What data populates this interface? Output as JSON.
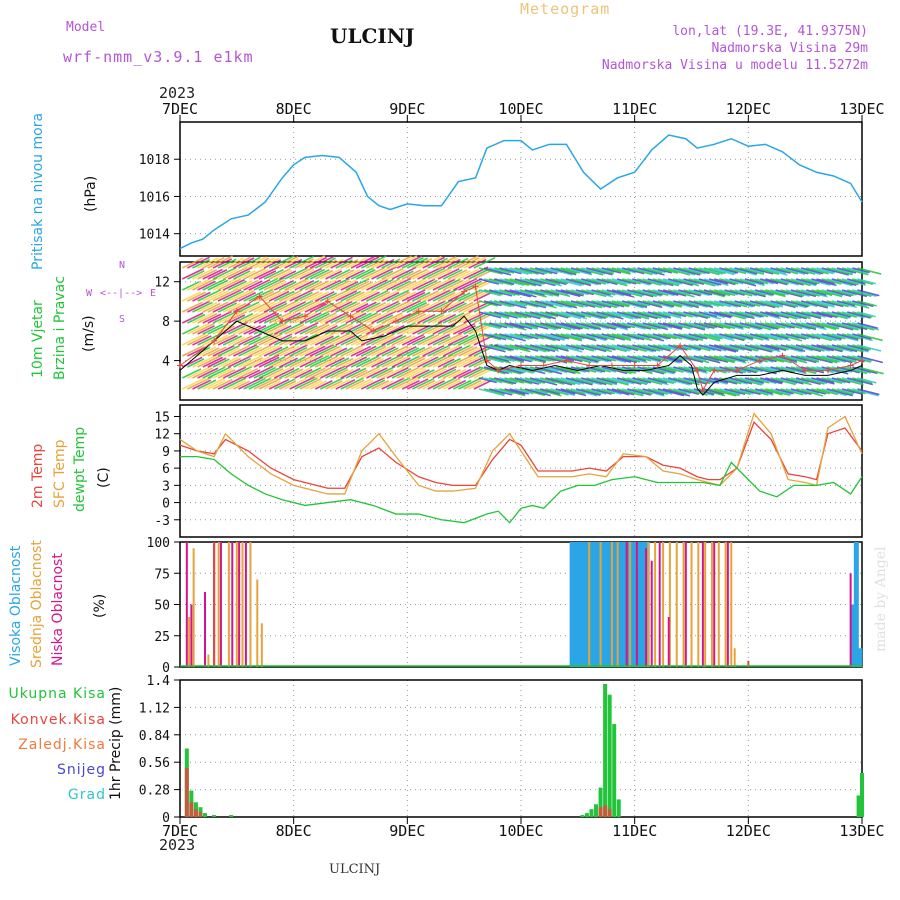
{
  "header": {
    "model_label": "Model",
    "model_name": "wrf-nmm_v3.9.1 e1km",
    "station": "ULCINJ",
    "product": "Meteogram",
    "lonlat": "lon,lat (19.3E, 41.9375N)",
    "elevation": "Nadmorska Visina 29m",
    "model_elevation": "Nadmorska Visina u modelu 11.5272m"
  },
  "footer": {
    "station": "ULCINJ",
    "credit": "made by Angel"
  },
  "x_axis": {
    "year": "2023",
    "ticks": [
      "7DEC",
      "8DEC",
      "9DEC",
      "10DEC",
      "11DEC",
      "12DEC",
      "13DEC"
    ]
  },
  "colors": {
    "pressure": "#2aa6e6",
    "wind_green": "#22c43a",
    "temp2m": "#e8453c",
    "sfc": "#e6a33a",
    "dewpt": "#22c43a",
    "high": "#2aa6e6",
    "mid": "#e6a33a",
    "low": "#d4158a",
    "conv": "#e8453c",
    "snow": "#4a47d0",
    "grad": "#2ec7c7",
    "frz": "#f07a3a",
    "total": "#22c43a",
    "purple": "#b455d6"
  },
  "panels": {
    "pressure": {
      "label1": "Pritisak na nivou mora",
      "unit": "(hPa)"
    },
    "wind": {
      "label1": "10m Vjetar",
      "label2": "Brzina i Pravac",
      "unit": "(m/s)",
      "rose_n": "N",
      "rose_s": "S",
      "rose_e": "E",
      "rose_w": "W",
      "rose_arrow": "<--|-->"
    },
    "temp": {
      "label1": "2m Temp",
      "label2": "SFC Temp",
      "label3": "dewpt Temp",
      "unit": "(C)"
    },
    "cloud": {
      "label1": "Visoka Oblacnost",
      "label2": "Srednja Oblacnost",
      "label3": "Niska Oblacnost",
      "unit": "(%)"
    },
    "precip": {
      "label_unit": "1hr Precip (mm)",
      "legend": [
        "Ukupna Kisa",
        "Konvek.Kisa",
        "Zaledj.Kisa",
        "Snijeg",
        "Grad"
      ]
    }
  },
  "chart_data": [
    {
      "type": "line",
      "title": "",
      "ylabel": "(hPa)",
      "ylim": [
        1012.8,
        1020.0
      ],
      "yticks": [
        "1014",
        "1016",
        "1018"
      ],
      "series": [
        {
          "name": "Pritisak na nivou mora",
          "x": [
            0,
            0.1,
            0.2,
            0.3,
            0.45,
            0.6,
            0.75,
            0.9,
            1.0,
            1.1,
            1.25,
            1.4,
            1.55,
            1.65,
            1.75,
            1.85,
            2.0,
            2.15,
            2.3,
            2.45,
            2.6,
            2.7,
            2.85,
            3.0,
            3.1,
            3.25,
            3.4,
            3.55,
            3.7,
            3.85,
            4.0,
            4.15,
            4.3,
            4.45,
            4.55,
            4.7,
            4.85,
            5.0,
            5.15,
            5.3,
            5.45,
            5.6,
            5.75,
            5.9,
            6.0
          ],
          "values": [
            1013.2,
            1013.5,
            1013.7,
            1014.2,
            1014.8,
            1015.0,
            1015.7,
            1017.0,
            1017.7,
            1018.1,
            1018.2,
            1018.1,
            1017.3,
            1016.0,
            1015.5,
            1015.3,
            1015.6,
            1015.5,
            1015.5,
            1016.8,
            1017.0,
            1018.6,
            1019.0,
            1019.0,
            1018.5,
            1018.8,
            1018.8,
            1017.3,
            1016.4,
            1017.0,
            1017.3,
            1018.5,
            1019.3,
            1019.1,
            1018.6,
            1018.8,
            1019.1,
            1018.7,
            1018.8,
            1018.4,
            1017.7,
            1017.3,
            1017.1,
            1016.7,
            1015.7
          ]
        }
      ]
    },
    {
      "type": "line",
      "ylabel": "(m/s)",
      "ylim": [
        0,
        14
      ],
      "yticks": [
        "4",
        "8",
        "12"
      ],
      "series": [
        {
          "name": "wind_speed_black",
          "x": [
            0,
            0.2,
            0.4,
            0.5,
            0.7,
            0.9,
            1.1,
            1.3,
            1.5,
            1.6,
            1.8,
            2.0,
            2.2,
            2.4,
            2.5,
            2.6,
            2.7,
            2.8,
            2.9,
            3.1,
            3.3,
            3.5,
            3.7,
            3.9,
            4.1,
            4.3,
            4.4,
            4.5,
            4.55,
            4.6,
            4.7,
            4.9,
            5.1,
            5.3,
            5.5,
            5.7,
            5.9,
            6.0
          ],
          "values": [
            3,
            5,
            7,
            8,
            7,
            6,
            6,
            7,
            7,
            6,
            6.5,
            7.5,
            7.5,
            7.5,
            8.5,
            7,
            3.5,
            3,
            3.5,
            3,
            3.5,
            3,
            3.5,
            3,
            3,
            3.5,
            4.5,
            3.5,
            1.2,
            0.5,
            1.8,
            2.5,
            2.5,
            3,
            2.5,
            2.5,
            3,
            3.5
          ]
        },
        {
          "name": "wind_speed_red",
          "x": [
            0,
            0.3,
            0.5,
            0.7,
            0.9,
            1.1,
            1.3,
            1.5,
            1.7,
            1.9,
            2.1,
            2.3,
            2.5,
            2.6,
            2.7,
            2.8,
            3.0,
            3.2,
            3.4,
            3.6,
            3.8,
            4.0,
            4.2,
            4.4,
            4.55,
            4.6,
            4.7,
            4.9,
            5.1,
            5.3,
            5.5,
            5.7,
            5.9,
            6.0
          ],
          "values": [
            3.5,
            6,
            9,
            10.5,
            8,
            8.5,
            10,
            8.5,
            7,
            8,
            9,
            9,
            11,
            11.5,
            4,
            3,
            3.5,
            3.5,
            4,
            3.5,
            3.5,
            3.5,
            3.5,
            5.5,
            3,
            1,
            3,
            3,
            4,
            4.5,
            3,
            3,
            3.5,
            4
          ]
        }
      ]
    },
    {
      "type": "line",
      "ylabel": "(C)",
      "ylim": [
        -6,
        17
      ],
      "yticks": [
        "-3",
        "0",
        "3",
        "6",
        "9",
        "12",
        "15"
      ],
      "series": [
        {
          "name": "2m Temp",
          "x": [
            0,
            0.15,
            0.3,
            0.4,
            0.6,
            0.8,
            1.0,
            1.2,
            1.3,
            1.45,
            1.6,
            1.75,
            1.9,
            2.1,
            2.25,
            2.4,
            2.6,
            2.75,
            2.9,
            3.0,
            3.15,
            3.3,
            3.45,
            3.6,
            3.75,
            3.9,
            4.1,
            4.25,
            4.4,
            4.55,
            4.65,
            4.75,
            4.9,
            5.05,
            5.2,
            5.35,
            5.5,
            5.6,
            5.7,
            5.85,
            6.0
          ],
          "values": [
            10,
            9,
            8.5,
            11,
            9,
            6,
            4,
            3,
            2.5,
            2.5,
            8,
            9.5,
            7,
            4.5,
            3.5,
            3,
            3,
            7.5,
            11,
            10,
            5.5,
            5.5,
            5.5,
            6,
            5.5,
            8,
            8,
            6.5,
            6,
            4.5,
            4,
            4,
            6,
            14,
            11,
            5,
            4.5,
            4,
            12,
            13,
            9
          ]
        },
        {
          "name": "SFC Temp",
          "x": [
            0,
            0.15,
            0.3,
            0.4,
            0.6,
            0.8,
            1.0,
            1.2,
            1.3,
            1.45,
            1.6,
            1.75,
            1.9,
            2.1,
            2.25,
            2.4,
            2.6,
            2.75,
            2.9,
            3.0,
            3.15,
            3.3,
            3.45,
            3.6,
            3.75,
            3.9,
            4.1,
            4.25,
            4.4,
            4.55,
            4.65,
            4.75,
            4.9,
            5.05,
            5.2,
            5.35,
            5.5,
            5.6,
            5.7,
            5.85,
            6.0
          ],
          "values": [
            11,
            9,
            8,
            12,
            8,
            5,
            3,
            2,
            1.5,
            1.5,
            9,
            12,
            8,
            3,
            2,
            2,
            2.5,
            9,
            12,
            9,
            4.5,
            4.5,
            4.5,
            5,
            4.5,
            8.5,
            8,
            5.5,
            5,
            4,
            3.5,
            3,
            6,
            15.5,
            12,
            4,
            3.5,
            3,
            13,
            15,
            8.5
          ]
        },
        {
          "name": "dewpt Temp",
          "x": [
            0,
            0.15,
            0.3,
            0.45,
            0.6,
            0.75,
            0.9,
            1.1,
            1.3,
            1.5,
            1.7,
            1.9,
            2.1,
            2.3,
            2.5,
            2.7,
            2.8,
            2.9,
            3.0,
            3.1,
            3.2,
            3.35,
            3.5,
            3.65,
            3.8,
            4.0,
            4.2,
            4.4,
            4.6,
            4.75,
            4.85,
            5.0,
            5.1,
            5.25,
            5.4,
            5.6,
            5.75,
            5.9,
            6.0
          ],
          "values": [
            8,
            8,
            7.5,
            5,
            3,
            1.5,
            0.5,
            -0.5,
            0,
            0.5,
            -0.5,
            -2,
            -2,
            -3,
            -3.5,
            -2,
            -1.5,
            -3.5,
            -1,
            -0.5,
            -1,
            2,
            3,
            3,
            4,
            4.5,
            3.5,
            3.5,
            3.5,
            3,
            7,
            4,
            2,
            1,
            3,
            3,
            3.5,
            1.5,
            4.5
          ]
        }
      ]
    },
    {
      "type": "bar",
      "ylabel": "(%)",
      "ylim": [
        0,
        100
      ],
      "yticks": [
        "0",
        "25",
        "50",
        "75",
        "100"
      ],
      "series": [
        {
          "name": "Visoka Oblacnost",
          "x": [
            3.45,
            3.48,
            3.51,
            3.54,
            3.57,
            3.6,
            3.63,
            3.66,
            3.69,
            3.72,
            3.75,
            3.78,
            3.81,
            3.84,
            3.87,
            3.9,
            3.93,
            3.96,
            3.99,
            4.02,
            4.05,
            4.08,
            4.11,
            5.92,
            5.95,
            5.98
          ],
          "values": [
            100,
            100,
            100,
            100,
            100,
            100,
            100,
            100,
            100,
            100,
            100,
            100,
            100,
            100,
            100,
            100,
            100,
            100,
            100,
            80,
            100,
            100,
            100,
            50,
            100,
            15
          ]
        },
        {
          "name": "Srednja Oblacnost",
          "x": [
            0.08,
            0.12,
            0.25,
            0.34,
            0.43,
            0.5,
            0.55,
            0.62,
            0.68,
            0.72,
            3.6,
            3.7,
            3.8,
            3.85,
            3.96,
            4.12,
            4.18,
            4.25,
            4.31,
            4.37,
            4.43,
            4.5,
            4.56,
            4.62,
            4.68,
            4.74,
            4.8,
            4.85,
            4.88
          ],
          "values": [
            40,
            95,
            10,
            100,
            100,
            100,
            100,
            100,
            70,
            35,
            100,
            100,
            100,
            100,
            100,
            100,
            100,
            100,
            100,
            100,
            100,
            100,
            100,
            100,
            100,
            100,
            100,
            100,
            15
          ]
        },
        {
          "name": "Niska Oblacnost",
          "x": [
            0.06,
            0.1,
            0.22,
            0.3,
            0.36,
            0.46,
            0.52,
            0.58,
            3.93,
            4.02,
            4.1,
            4.15,
            4.22,
            4.3,
            4.45,
            4.6,
            4.7,
            4.82,
            5.9
          ],
          "values": [
            100,
            50,
            60,
            100,
            100,
            100,
            100,
            100,
            100,
            100,
            95,
            85,
            100,
            40,
            100,
            100,
            100,
            100,
            75
          ]
        },
        {
          "name": "Konvek.Kisa_marks",
          "x": [
            0.3,
            5.0
          ],
          "values": [
            100,
            5
          ]
        }
      ]
    },
    {
      "type": "bar",
      "ylabel": "1hr Precip (mm)",
      "ylim": [
        0,
        1.4
      ],
      "yticks": [
        "0",
        "0.28",
        "0.56",
        "0.84",
        "1.12",
        "1.4"
      ],
      "series": [
        {
          "name": "Ukupna Kisa",
          "x": [
            0.06,
            0.1,
            0.14,
            0.18,
            0.22,
            0.3,
            0.45,
            3.54,
            3.58,
            3.62,
            3.66,
            3.7,
            3.74,
            3.78,
            3.82,
            3.86,
            5.97,
            6.0
          ],
          "values": [
            0.7,
            0.27,
            0.15,
            0.1,
            0.04,
            0.02,
            0.02,
            0.02,
            0.04,
            0.08,
            0.13,
            0.3,
            1.36,
            1.25,
            0.95,
            0.18,
            0.22,
            0.45
          ]
        },
        {
          "name": "Konvek.Kisa",
          "x": [
            0.06,
            0.1,
            0.14,
            0.18,
            3.7,
            3.74,
            3.78
          ],
          "values": [
            0.5,
            0.15,
            0.08,
            0.05,
            0.1,
            0.12,
            0.08
          ]
        }
      ]
    }
  ]
}
